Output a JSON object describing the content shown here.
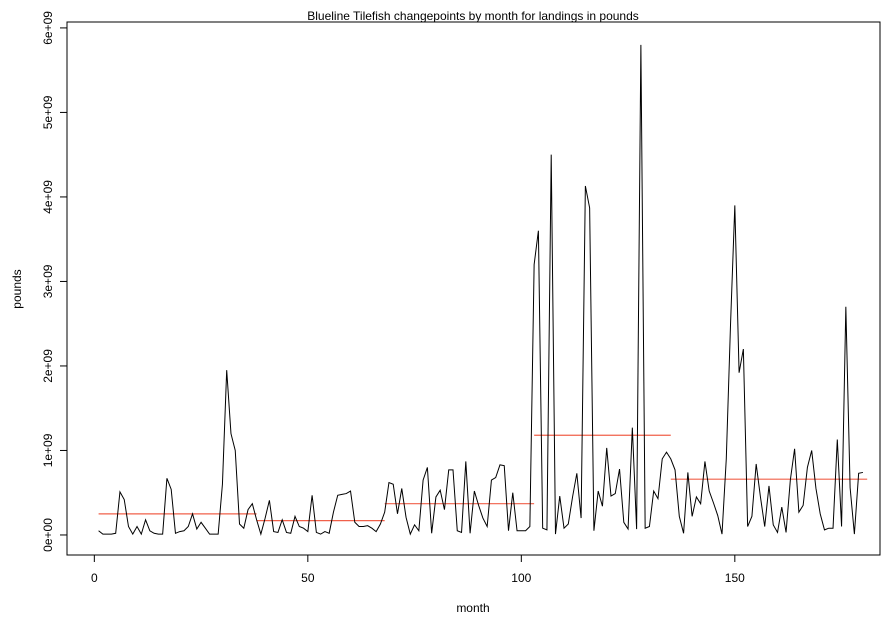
{
  "chart_data": {
    "type": "line",
    "title": "Blueline Tilefish changepoints by month for landings in pounds",
    "x_label": "month",
    "y_label": "pounds",
    "x": [
      1,
      2,
      3,
      4,
      5,
      6,
      7,
      8,
      9,
      10,
      11,
      12,
      13,
      14,
      15,
      16,
      17,
      18,
      19,
      20,
      21,
      22,
      23,
      24,
      25,
      26,
      27,
      28,
      29,
      30,
      31,
      32,
      33,
      34,
      35,
      36,
      37,
      38,
      39,
      40,
      41,
      42,
      43,
      44,
      45,
      46,
      47,
      48,
      49,
      50,
      51,
      52,
      53,
      54,
      55,
      56,
      57,
      58,
      59,
      60,
      61,
      62,
      63,
      64,
      65,
      66,
      67,
      68,
      69,
      70,
      71,
      72,
      73,
      74,
      75,
      76,
      77,
      78,
      79,
      80,
      81,
      82,
      83,
      84,
      85,
      86,
      87,
      88,
      89,
      90,
      91,
      92,
      93,
      94,
      95,
      96,
      97,
      98,
      99,
      100,
      101,
      102,
      103,
      104,
      105,
      106,
      107,
      108,
      109,
      110,
      111,
      112,
      113,
      114,
      115,
      116,
      117,
      118,
      119,
      120,
      121,
      122,
      123,
      124,
      125,
      126,
      127,
      128,
      129,
      130,
      131,
      132,
      133,
      134,
      135,
      136,
      137,
      138,
      139,
      140,
      141,
      142,
      143,
      144,
      145,
      146,
      147,
      148,
      149,
      150,
      151,
      152,
      153,
      154,
      155,
      156,
      157,
      158,
      159,
      160,
      161,
      162,
      163,
      164,
      165,
      166,
      167,
      168,
      169,
      170,
      171,
      172,
      173,
      174,
      175,
      176,
      177,
      178,
      179,
      180
    ],
    "series": [
      {
        "color": "#000000",
        "values": [
          50000000.0,
          10000000.0,
          10000000.0,
          10000000.0,
          20000000.0,
          510000000.0,
          420000000.0,
          100000000.0,
          10000000.0,
          100000000.0,
          10000000.0,
          180000000.0,
          50000000.0,
          20000000.0,
          10000000.0,
          10000000.0,
          670000000.0,
          540000000.0,
          20000000.0,
          40000000.0,
          50000000.0,
          100000000.0,
          250000000.0,
          70000000.0,
          150000000.0,
          80000000.0,
          10000000.0,
          10000000.0,
          10000000.0,
          600000000.0,
          1950000000.0,
          1200000000.0,
          1000000000.0,
          130000000.0,
          80000000.0,
          300000000.0,
          370000000.0,
          180000000.0,
          10000000.0,
          200000000.0,
          410000000.0,
          40000000.0,
          30000000.0,
          180000000.0,
          30000000.0,
          20000000.0,
          220000000.0,
          100000000.0,
          80000000.0,
          40000000.0,
          470000000.0,
          30000000.0,
          10000000.0,
          40000000.0,
          20000000.0,
          270000000.0,
          470000000.0,
          480000000.0,
          490000000.0,
          520000000.0,
          150000000.0,
          100000000.0,
          100000000.0,
          110000000.0,
          80000000.0,
          40000000.0,
          130000000.0,
          270000000.0,
          620000000.0,
          600000000.0,
          250000000.0,
          550000000.0,
          210000000.0,
          10000000.0,
          120000000.0,
          50000000.0,
          650000000.0,
          800000000.0,
          20000000.0,
          450000000.0,
          530000000.0,
          300000000.0,
          770000000.0,
          770000000.0,
          50000000.0,
          30000000.0,
          870000000.0,
          20000000.0,
          520000000.0,
          350000000.0,
          200000000.0,
          100000000.0,
          650000000.0,
          680000000.0,
          830000000.0,
          820000000.0,
          50000000.0,
          500000000.0,
          50000000.0,
          50000000.0,
          50000000.0,
          100000000.0,
          3200000000.0,
          3600000000.0,
          80000000.0,
          60000000.0,
          4500000000.0,
          10000000.0,
          460000000.0,
          80000000.0,
          130000000.0,
          450000000.0,
          730000000.0,
          200000000.0,
          4130000000.0,
          3870000000.0,
          50000000.0,
          520000000.0,
          340000000.0,
          1030000000.0,
          460000000.0,
          490000000.0,
          780000000.0,
          150000000.0,
          70000000.0,
          1270000000.0,
          70000000.0,
          5800000000.0,
          80000000.0,
          100000000.0,
          520000000.0,
          430000000.0,
          900000000.0,
          980000000.0,
          900000000.0,
          770000000.0,
          220000000.0,
          20000000.0,
          740000000.0,
          220000000.0,
          450000000.0,
          370000000.0,
          870000000.0,
          520000000.0,
          380000000.0,
          230000000.0,
          10000000.0,
          900000000.0,
          2500000000.0,
          3900000000.0,
          1920000000.0,
          2200000000.0,
          100000000.0,
          220000000.0,
          840000000.0,
          450000000.0,
          100000000.0,
          580000000.0,
          120000000.0,
          30000000.0,
          330000000.0,
          30000000.0,
          650000000.0,
          1020000000.0,
          270000000.0,
          350000000.0,
          800000000.0,
          1000000000.0,
          550000000.0,
          250000000.0,
          60000000.0,
          80000000.0,
          80000000.0,
          1130000000.0,
          100000000.0,
          2700000000.0,
          560000000.0,
          10000000.0,
          730000000.0,
          740000000.0
        ]
      }
    ],
    "changepoints": {
      "color": "#f0604a",
      "segments": [
        {
          "start": 1,
          "end": 38,
          "value": 250000000.0
        },
        {
          "start": 38,
          "end": 68,
          "value": 170000000.0
        },
        {
          "start": 68,
          "end": 103,
          "value": 370000000.0
        },
        {
          "start": 103,
          "end": 135,
          "value": 1180000000.0
        },
        {
          "start": 135,
          "end": 181,
          "value": 660000000.0
        }
      ]
    },
    "xlim": [
      -6.4,
      184
    ],
    "ylim": [
      -237000000.0,
      6070000000.0
    ],
    "xticks": [
      0,
      50,
      100,
      150
    ],
    "yticks": [
      {
        "value": 0,
        "label": "0e+00"
      },
      {
        "value": 1000000000.0,
        "label": "1e+09"
      },
      {
        "value": 2000000000.0,
        "label": "2e+09"
      },
      {
        "value": 3000000000.0,
        "label": "3e+09"
      },
      {
        "value": 4000000000.0,
        "label": "4e+09"
      },
      {
        "value": 5000000000.0,
        "label": "5e+09"
      },
      {
        "value": 6000000000.0,
        "label": "6e+09"
      }
    ]
  }
}
